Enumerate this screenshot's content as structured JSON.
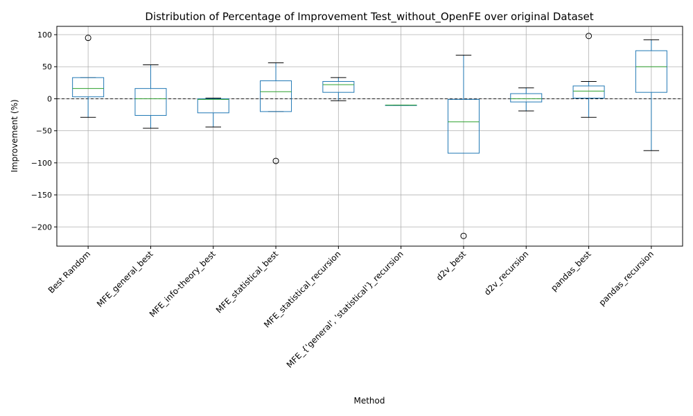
{
  "chart_data": {
    "type": "box",
    "title": "Distribution of Percentage of Improvement Test_without_OpenFE over original Dataset",
    "xlabel": "Method",
    "ylabel": "Improvement (%)",
    "ylim": [
      -230,
      113
    ],
    "yticks": [
      100,
      50,
      0,
      -50,
      -100,
      -150,
      -200
    ],
    "ytick_labels": [
      "100",
      "50",
      "0",
      "−50",
      "−100",
      "−150",
      "−200"
    ],
    "grid": true,
    "reference_line": 0,
    "categories": [
      "Best Random",
      "MFE_general_best",
      "MFE_info-theory_best",
      "MFE_statistical_best",
      "MFE_statistical_recursion",
      "MFE_{'general', 'statistical'}_recursion",
      "d2v_best",
      "d2v_recursion",
      "pandas_best",
      "pandas_recursion"
    ],
    "boxes": [
      {
        "whisker_low": -29,
        "q1": 3,
        "median": 16,
        "q3": 33,
        "whisker_high": 33,
        "outliers": [
          95
        ]
      },
      {
        "whisker_low": -46,
        "q1": -26,
        "median": 0,
        "q3": 16,
        "whisker_high": 53,
        "outliers": []
      },
      {
        "whisker_low": -44,
        "q1": -22,
        "median": -1,
        "q3": 0,
        "whisker_high": 1,
        "outliers": []
      },
      {
        "whisker_low": -20,
        "q1": -20,
        "median": 11,
        "q3": 28,
        "whisker_high": 56,
        "outliers": [
          -97
        ]
      },
      {
        "whisker_low": -3,
        "q1": 10,
        "median": 22,
        "q3": 27,
        "whisker_high": 33,
        "outliers": []
      },
      {
        "whisker_low": -10,
        "q1": -10,
        "median": -10,
        "q3": -10,
        "whisker_high": -10,
        "outliers": []
      },
      {
        "whisker_low": -85,
        "q1": -85,
        "median": -36,
        "q3": -1,
        "whisker_high": 68,
        "outliers": [
          -214
        ]
      },
      {
        "whisker_low": -19,
        "q1": -5,
        "median": 0,
        "q3": 8,
        "whisker_high": 17,
        "outliers": []
      },
      {
        "whisker_low": -29,
        "q1": 1,
        "median": 12,
        "q3": 20,
        "whisker_high": 27,
        "outliers": [
          98
        ]
      },
      {
        "whisker_low": -81,
        "q1": 10,
        "median": 50,
        "q3": 75,
        "whisker_high": 92,
        "outliers": []
      }
    ],
    "colors": {
      "box": "#1f77b4",
      "median": "#2ca02c",
      "whisker": "#000000",
      "grid": "#b0b0b0"
    }
  }
}
